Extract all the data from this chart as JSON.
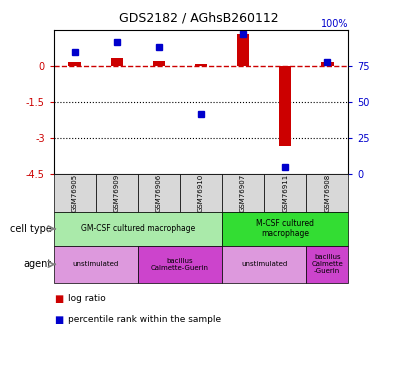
{
  "title": "GDS2182 / AGhsB260112",
  "samples": [
    "GSM76905",
    "GSM76909",
    "GSM76906",
    "GSM76910",
    "GSM76907",
    "GSM76911",
    "GSM76908"
  ],
  "log_ratio": [
    0.15,
    0.35,
    0.2,
    0.1,
    1.35,
    -3.3,
    0.15
  ],
  "percentile_rank": [
    85,
    92,
    88,
    42,
    97,
    5,
    78
  ],
  "ylim_left": [
    -4.5,
    1.5
  ],
  "ylim_right": [
    0,
    100
  ],
  "yticks_left": [
    0,
    -1.5,
    -3,
    -4.5
  ],
  "ytick_labels_left": [
    "0",
    "-1.5",
    "-3",
    "-4.5"
  ],
  "ytick_right_vals": [
    75,
    50,
    25,
    0
  ],
  "ytick_right_labels": [
    "75",
    "50",
    "25",
    "0"
  ],
  "y100_label": "100%",
  "dotted_lines": [
    -1.5,
    -3
  ],
  "log_color": "#cc0000",
  "pct_color": "#0000cc",
  "sample_box_color": "#d8d8d8",
  "cell_types": [
    {
      "label": "GM-CSF cultured macrophage",
      "span": [
        0,
        3
      ],
      "color": "#aaeaaa"
    },
    {
      "label": "M-CSF cultured\nmacrophage",
      "span": [
        4,
        6
      ],
      "color": "#33dd33"
    }
  ],
  "agents": [
    {
      "label": "unstimulated",
      "span": [
        0,
        1
      ],
      "color": "#dd99dd"
    },
    {
      "label": "bacillus\nCalmette-Guerin",
      "span": [
        2,
        3
      ],
      "color": "#cc44cc"
    },
    {
      "label": "unstimulated",
      "span": [
        4,
        5
      ],
      "color": "#dd99dd"
    },
    {
      "label": "bacillus\nCalmette\n-Guerin",
      "span": [
        6,
        6
      ],
      "color": "#cc44cc"
    }
  ]
}
